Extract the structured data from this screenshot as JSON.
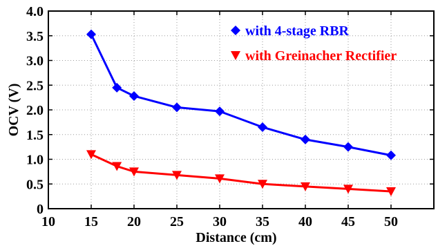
{
  "chart_data": {
    "type": "line",
    "xlabel": "Distance (cm)",
    "ylabel": "OCV (V)",
    "xlim": [
      10,
      55
    ],
    "ylim": [
      0,
      4.0
    ],
    "x_ticks": [
      10,
      15,
      20,
      25,
      30,
      35,
      40,
      45,
      50
    ],
    "x_tick_labels": [
      "10",
      "15",
      "20",
      "25",
      "30",
      "35",
      "40",
      "45",
      "50"
    ],
    "y_ticks": [
      0,
      0.5,
      1.0,
      1.5,
      2.0,
      2.5,
      3.0,
      3.5,
      4.0
    ],
    "y_tick_labels": [
      "0",
      "0.5",
      "1.0",
      "1.5",
      "2.0",
      "2.5",
      "3.0",
      "3.5",
      "4.0"
    ],
    "grid": true,
    "legend_position": "top-right",
    "series": [
      {
        "name": "with 4-stage RBR",
        "color": "#0000ff",
        "marker": "diamond",
        "x": [
          15,
          18,
          20,
          25,
          30,
          35,
          40,
          45,
          50
        ],
        "y": [
          3.53,
          2.45,
          2.28,
          2.05,
          1.97,
          1.65,
          1.4,
          1.25,
          1.08
        ]
      },
      {
        "name": "with Greinacher Rectifier",
        "color": "#ff0000",
        "marker": "triangle-down",
        "x": [
          15,
          18,
          20,
          25,
          30,
          35,
          40,
          45,
          50
        ],
        "y": [
          1.1,
          0.86,
          0.75,
          0.68,
          0.61,
          0.5,
          0.45,
          0.4,
          0.35
        ]
      }
    ]
  }
}
